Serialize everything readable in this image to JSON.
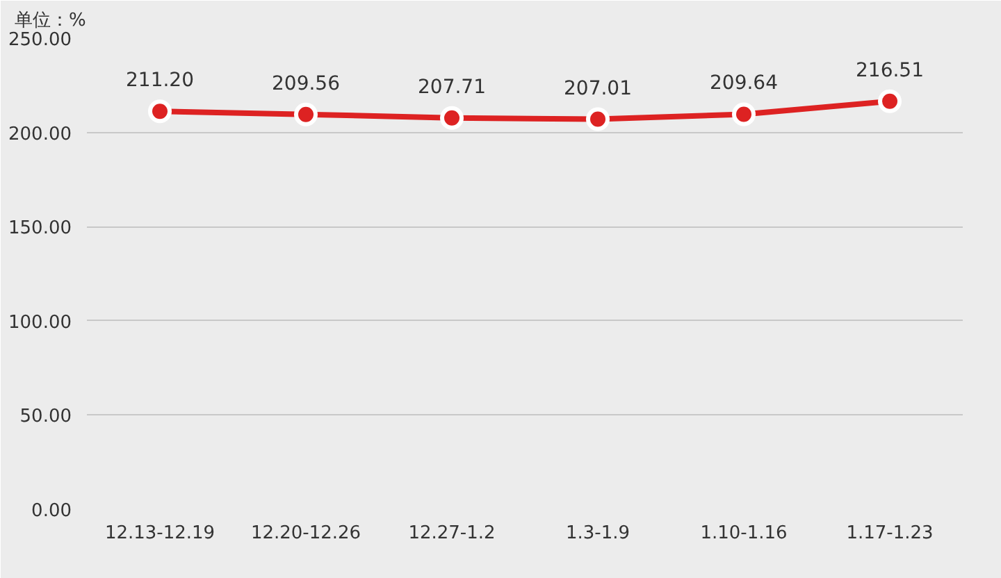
{
  "chart_data": {
    "type": "line",
    "ylabel": "单位：%",
    "categories": [
      "12.13-12.19",
      "12.20-12.26",
      "12.27-1.2",
      "1.3-1.9",
      "1.10-1.16",
      "1.17-1.23"
    ],
    "series": [
      {
        "color": "#dd2222",
        "values": [
          211.2,
          209.56,
          207.71,
          207.01,
          209.64,
          216.51
        ],
        "value_labels": [
          "211.20",
          "209.56",
          "207.71",
          "207.01",
          "209.64",
          "216.51"
        ]
      }
    ],
    "ylim": [
      0,
      250
    ],
    "yticks": [
      {
        "value": 0,
        "label": "0.00"
      },
      {
        "value": 50,
        "label": "50.00"
      },
      {
        "value": 100,
        "label": "100.00"
      },
      {
        "value": 150,
        "label": "150.00"
      },
      {
        "value": 200,
        "label": "200.00"
      },
      {
        "value": 250,
        "label": "250.00"
      }
    ],
    "grid": "y",
    "marker": "circle",
    "line_style": "solid"
  }
}
